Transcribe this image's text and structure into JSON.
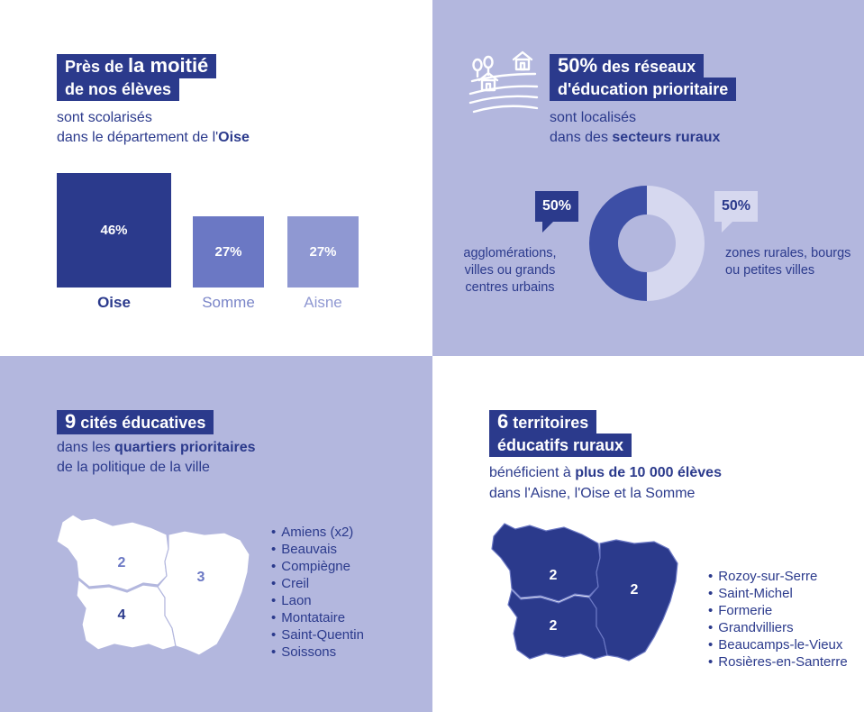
{
  "q1": {
    "title_line1_pre": "Près de ",
    "title_line1_big": "la moitié",
    "title_line2": "de nos élèves",
    "sub_line1": "sont scolarisés",
    "sub_line2_pre": "dans le département de l'",
    "sub_line2_bold": "Oise"
  },
  "q2": {
    "title_line1_big": "50%",
    "title_line1_rest": " des réseaux",
    "title_line2": "d'éducation prioritaire",
    "sub_line1": "sont localisés",
    "sub_line2_pre": "dans des ",
    "sub_line2_bold": "secteurs ruraux",
    "icon": "rural-landscape-icon"
  },
  "q3": {
    "title_big": "9",
    "title_rest": " cités éducatives",
    "sub_line1_pre": "dans les ",
    "sub_line1_bold": "quartiers prioritaires",
    "sub_line2": "de la politique de la ville",
    "map_labels": [
      "2",
      "3",
      "4"
    ],
    "cities": [
      "Amiens (x2)",
      "Beauvais",
      "Compiègne",
      "Creil",
      "Laon",
      "Montataire",
      "Saint-Quentin",
      "Soissons"
    ]
  },
  "q4": {
    "title_line1_big": "6",
    "title_line1_rest": " territoires",
    "title_line2": "éducatifs ruraux",
    "sub_line1_pre": "bénéficient à ",
    "sub_line1_bold": "plus de 10 000 élèves",
    "sub_line2": "dans l'Aisne, l'Oise et la Somme",
    "map_labels": [
      "2",
      "2",
      "2"
    ],
    "territories": [
      "Rozoy-sur-Serre",
      "Saint-Michel",
      "Formerie",
      "Grandvilliers",
      "Beaucamps-le-Vieux",
      "Rosières-en-Santerre"
    ]
  },
  "chart_data": [
    {
      "type": "bar",
      "categories": [
        "Oise",
        "Somme",
        "Aisne"
      ],
      "values": [
        46,
        27,
        27
      ],
      "value_labels": [
        "46%",
        "27%",
        "27%"
      ],
      "colors": [
        "#2b3a8c",
        "#6b78c4",
        "#8f98d2"
      ],
      "label_colors": [
        "#2b3a8c",
        "#7a85c8",
        "#8f98d2"
      ]
    },
    {
      "type": "pie",
      "categories": [
        "agglomérations, villes ou grands centres urbains",
        "zones rurales, bourgs ou petites villes"
      ],
      "values": [
        50,
        50
      ],
      "value_labels": [
        "50%",
        "50%"
      ],
      "colors": [
        "#3d4fa6",
        "#d6d8ef"
      ]
    }
  ]
}
